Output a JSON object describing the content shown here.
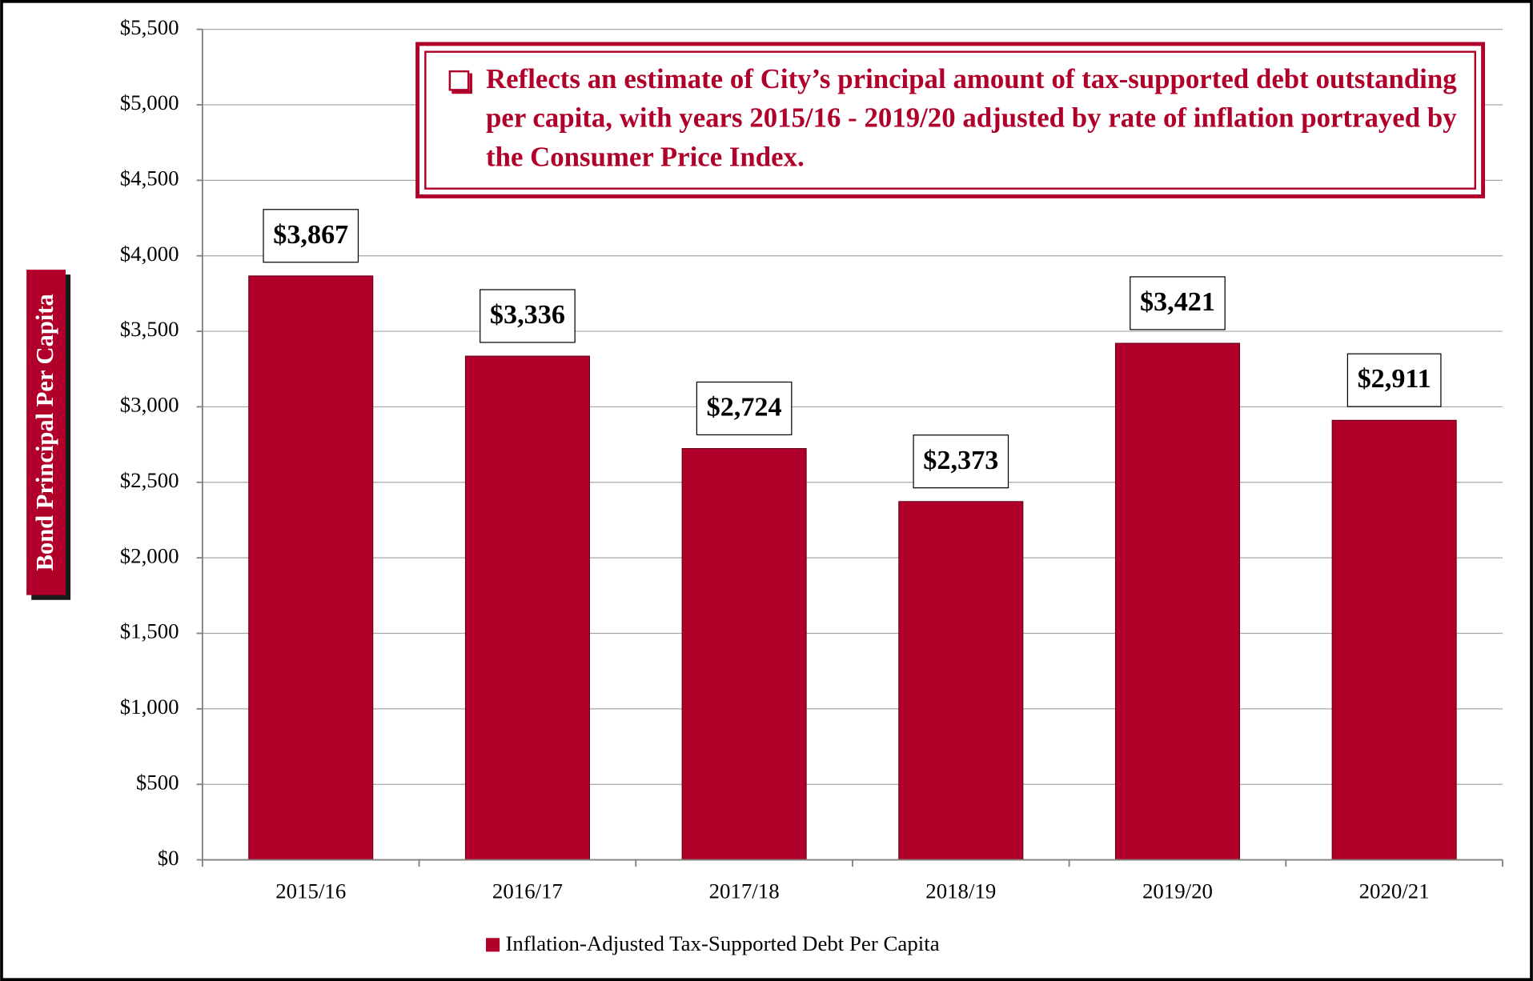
{
  "chart_data": {
    "type": "bar",
    "annotation": "Reflects an estimate of City’s principal amount of tax-supported debt outstanding per capita, with years 2015/16 - 2019/20 adjusted by rate of inflation portrayed by the Consumer Price Index.",
    "y_label": "Bond Principal Per Capita",
    "categories": [
      "2015/16",
      "2016/17",
      "2017/18",
      "2018/19",
      "2019/20",
      "2020/21"
    ],
    "series": [
      {
        "name": "Inflation-Adjusted Tax-Supported Debt Per Capita",
        "color": "#b0002a",
        "values": [
          3867,
          3336,
          2724,
          2373,
          3421,
          2911
        ],
        "value_labels": [
          "$3,867",
          "$3,336",
          "$2,724",
          "$2,373",
          "$3,421",
          "$2,911"
        ]
      }
    ],
    "ylim": [
      0,
      5500
    ],
    "yticks": [
      {
        "value": 0,
        "label": "$0"
      },
      {
        "value": 500,
        "label": "$500"
      },
      {
        "value": 1000,
        "label": "$1,000"
      },
      {
        "value": 1500,
        "label": "$1,500"
      },
      {
        "value": 2000,
        "label": "$2,000"
      },
      {
        "value": 2500,
        "label": "$2,500"
      },
      {
        "value": 3000,
        "label": "$3,000"
      },
      {
        "value": 3500,
        "label": "$3,500"
      },
      {
        "value": 4000,
        "label": "$4,000"
      },
      {
        "value": 4500,
        "label": "$4,500"
      },
      {
        "value": 5000,
        "label": "$5,000"
      },
      {
        "value": 5500,
        "label": "$5,500"
      }
    ],
    "grid": true
  }
}
